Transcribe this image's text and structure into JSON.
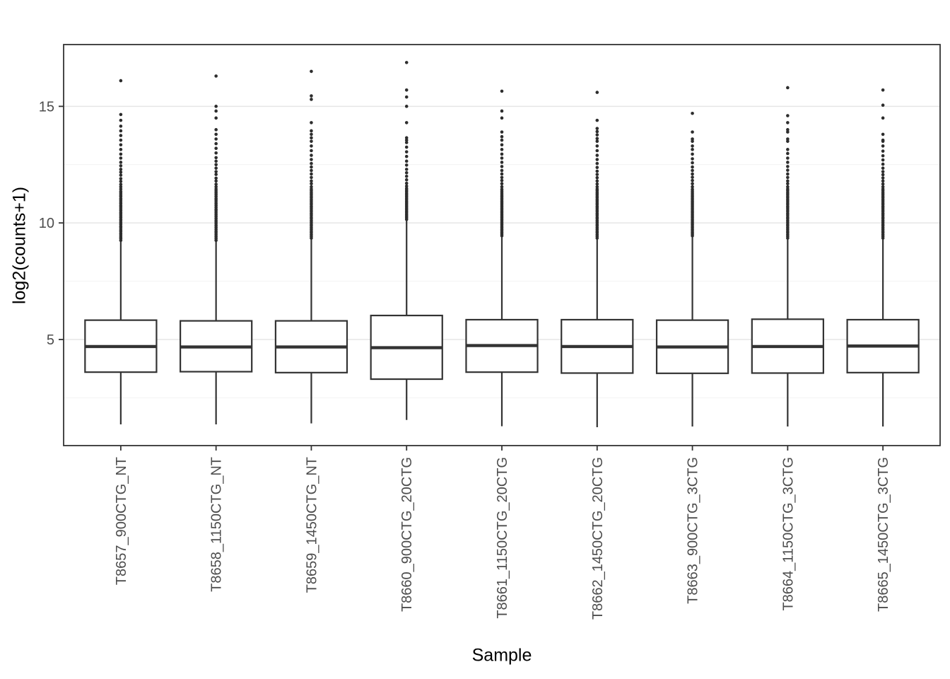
{
  "colors": {
    "ink": "#333333",
    "outlier": "#2d2d2d",
    "grid_major": "#e6e6e6",
    "grid_minor": "#f2f2f2",
    "axis_text": "#4d4d4d",
    "panel_bg": "#ffffff"
  },
  "chart_data": {
    "type": "boxplot",
    "title": "",
    "xlabel": "Sample",
    "ylabel": "log2(counts+1)",
    "ylim": [
      0.45,
      17.65
    ],
    "yticks": [
      5,
      10,
      15
    ],
    "yticks_minor": [
      2.5,
      7.5,
      12.5
    ],
    "grid": "major+minor",
    "legend": "none",
    "categories": [
      "T8657_900CTG_NT",
      "T8658_1150CTG_NT",
      "T8659_1450CTG_NT",
      "T8660_900CTG_20CTG",
      "T8661_1150CTG_20CTG",
      "T8662_1450CTG_20CTG",
      "T8663_900CTG_3CTG",
      "T8664_1150CTG_3CTG",
      "T8665_1450CTG_3CTG"
    ],
    "series": [
      {
        "name": "T8657_900CTG_NT",
        "whisker_low": 1.36,
        "q1": 3.6,
        "median": 4.7,
        "q3": 5.83,
        "whisker_high": 9.2,
        "outliers": [
          9.25,
          9.33,
          9.4,
          9.48,
          9.55,
          9.63,
          9.7,
          9.78,
          9.85,
          9.93,
          10.0,
          10.08,
          10.15,
          10.23,
          10.3,
          10.38,
          10.45,
          10.53,
          10.6,
          10.68,
          10.75,
          10.83,
          10.9,
          10.98,
          11.05,
          11.13,
          11.2,
          11.28,
          11.35,
          11.45,
          11.55,
          11.65,
          11.78,
          11.9,
          12.05,
          12.18,
          12.3,
          12.45,
          12.6,
          12.78,
          12.95,
          13.15,
          13.35,
          13.55,
          13.75,
          13.95,
          14.15,
          14.4,
          14.65,
          16.1
        ]
      },
      {
        "name": "T8658_1150CTG_NT",
        "whisker_low": 1.36,
        "q1": 3.62,
        "median": 4.68,
        "q3": 5.8,
        "whisker_high": 9.2,
        "outliers": [
          9.25,
          9.33,
          9.41,
          9.49,
          9.57,
          9.64,
          9.72,
          9.8,
          9.88,
          9.96,
          10.04,
          10.11,
          10.19,
          10.27,
          10.35,
          10.43,
          10.51,
          10.58,
          10.66,
          10.74,
          10.82,
          10.9,
          10.98,
          11.05,
          11.13,
          11.21,
          11.29,
          11.37,
          11.45,
          11.55,
          11.66,
          11.8,
          11.92,
          12.08,
          12.2,
          12.35,
          12.5,
          12.65,
          12.8,
          13.0,
          13.2,
          13.4,
          13.6,
          13.8,
          14.0,
          14.5,
          14.8,
          15.0,
          16.3
        ]
      },
      {
        "name": "T8659_1450CTG_NT",
        "whisker_low": 1.4,
        "q1": 3.58,
        "median": 4.68,
        "q3": 5.8,
        "whisker_high": 9.3,
        "outliers": [
          9.35,
          9.43,
          9.5,
          9.58,
          9.65,
          9.73,
          9.8,
          9.88,
          9.95,
          10.03,
          10.1,
          10.18,
          10.25,
          10.33,
          10.4,
          10.48,
          10.55,
          10.63,
          10.7,
          10.78,
          10.85,
          10.93,
          11.0,
          11.08,
          11.15,
          11.23,
          11.3,
          11.38,
          11.45,
          11.55,
          11.68,
          11.8,
          11.95,
          12.1,
          12.25,
          12.4,
          12.55,
          12.72,
          12.9,
          13.1,
          13.3,
          13.5,
          13.65,
          13.8,
          13.95,
          14.3,
          15.3,
          15.45,
          16.5
        ]
      },
      {
        "name": "T8660_900CTG_20CTG",
        "whisker_low": 1.55,
        "q1": 3.3,
        "median": 4.65,
        "q3": 6.03,
        "whisker_high": 10.1,
        "outliers": [
          10.15,
          10.22,
          10.29,
          10.36,
          10.43,
          10.5,
          10.57,
          10.64,
          10.71,
          10.78,
          10.85,
          10.92,
          10.99,
          11.06,
          11.13,
          11.2,
          11.27,
          11.34,
          11.41,
          11.48,
          11.58,
          11.7,
          11.85,
          12.0,
          12.15,
          12.3,
          12.48,
          12.65,
          12.85,
          13.05,
          13.25,
          13.45,
          13.55,
          13.65,
          14.3,
          15.0,
          15.4,
          15.7,
          16.88
        ]
      },
      {
        "name": "T8661_1150CTG_20CTG",
        "whisker_low": 1.28,
        "q1": 3.6,
        "median": 4.74,
        "q3": 5.85,
        "whisker_high": 9.4,
        "outliers": [
          9.45,
          9.52,
          9.59,
          9.66,
          9.73,
          9.8,
          9.87,
          9.94,
          10.01,
          10.08,
          10.15,
          10.22,
          10.29,
          10.36,
          10.43,
          10.5,
          10.57,
          10.64,
          10.71,
          10.78,
          10.85,
          10.92,
          10.99,
          11.06,
          11.13,
          11.2,
          11.28,
          11.36,
          11.44,
          11.55,
          11.68,
          11.82,
          11.95,
          12.1,
          12.25,
          12.42,
          12.6,
          12.78,
          12.95,
          13.15,
          13.35,
          13.55,
          13.7,
          13.9,
          14.5,
          14.8,
          15.65
        ]
      },
      {
        "name": "T8662_1450CTG_20CTG",
        "whisker_low": 1.24,
        "q1": 3.56,
        "median": 4.7,
        "q3": 5.85,
        "whisker_high": 9.3,
        "outliers": [
          9.35,
          9.43,
          9.5,
          9.58,
          9.65,
          9.73,
          9.8,
          9.88,
          9.95,
          10.03,
          10.1,
          10.18,
          10.25,
          10.33,
          10.4,
          10.48,
          10.55,
          10.63,
          10.7,
          10.78,
          10.85,
          10.93,
          11.0,
          11.08,
          11.15,
          11.23,
          11.3,
          11.38,
          11.45,
          11.55,
          11.67,
          11.8,
          11.94,
          12.08,
          12.22,
          12.38,
          12.55,
          12.72,
          12.9,
          13.1,
          13.3,
          13.5,
          13.62,
          13.78,
          13.92,
          14.05,
          14.4,
          15.6
        ]
      },
      {
        "name": "T8663_900CTG_3CTG",
        "whisker_low": 1.27,
        "q1": 3.55,
        "median": 4.68,
        "q3": 5.83,
        "whisker_high": 9.4,
        "outliers": [
          9.45,
          9.52,
          9.59,
          9.66,
          9.73,
          9.8,
          9.87,
          9.94,
          10.01,
          10.08,
          10.15,
          10.22,
          10.29,
          10.36,
          10.43,
          10.5,
          10.57,
          10.64,
          10.71,
          10.78,
          10.85,
          10.92,
          10.99,
          11.06,
          11.13,
          11.2,
          11.28,
          11.36,
          11.44,
          11.55,
          11.68,
          11.82,
          11.96,
          12.1,
          12.25,
          12.4,
          12.58,
          12.75,
          12.95,
          13.15,
          13.3,
          13.5,
          13.6,
          13.9,
          14.7
        ]
      },
      {
        "name": "T8664_1150CTG_3CTG",
        "whisker_low": 1.27,
        "q1": 3.56,
        "median": 4.7,
        "q3": 5.87,
        "whisker_high": 9.3,
        "outliers": [
          9.35,
          9.43,
          9.5,
          9.58,
          9.65,
          9.73,
          9.8,
          9.88,
          9.95,
          10.03,
          10.1,
          10.18,
          10.25,
          10.33,
          10.4,
          10.48,
          10.55,
          10.63,
          10.7,
          10.78,
          10.85,
          10.93,
          11.0,
          11.08,
          11.15,
          11.23,
          11.3,
          11.38,
          11.45,
          11.55,
          11.68,
          11.8,
          11.95,
          12.1,
          12.26,
          12.42,
          12.6,
          12.78,
          12.98,
          13.15,
          13.5,
          13.6,
          13.9,
          14.0,
          14.3,
          14.6,
          15.8
        ]
      },
      {
        "name": "T8665_1450CTG_3CTG",
        "whisker_low": 1.27,
        "q1": 3.58,
        "median": 4.72,
        "q3": 5.85,
        "whisker_high": 9.3,
        "outliers": [
          9.35,
          9.43,
          9.5,
          9.58,
          9.65,
          9.73,
          9.8,
          9.88,
          9.95,
          10.03,
          10.1,
          10.18,
          10.25,
          10.33,
          10.4,
          10.48,
          10.55,
          10.63,
          10.7,
          10.78,
          10.85,
          10.93,
          11.0,
          11.08,
          11.15,
          11.23,
          11.3,
          11.38,
          11.45,
          11.55,
          11.67,
          11.8,
          11.93,
          12.07,
          12.2,
          12.35,
          12.52,
          12.7,
          12.88,
          13.08,
          13.3,
          13.5,
          13.55,
          13.8,
          14.5,
          15.05,
          15.7
        ]
      }
    ]
  }
}
